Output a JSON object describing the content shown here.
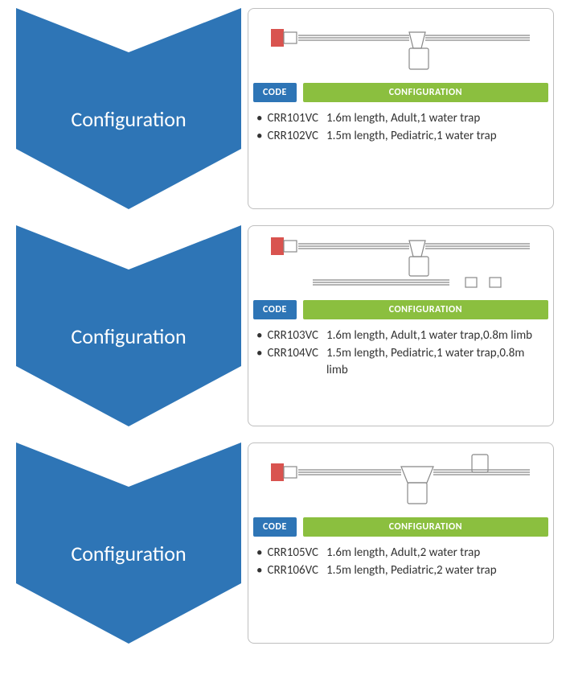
{
  "colors": {
    "chevron_fill": "#2e75b6",
    "code_bg": "#2e75b6",
    "config_bg": "#8bbf3f",
    "card_border": "#bfbfbf",
    "text": "#333333",
    "white": "#ffffff"
  },
  "chevron_label": "Configuration",
  "header": {
    "code": "CODE",
    "config": "CONFIGURATION"
  },
  "sections": [
    {
      "illustration": "circuit-single-trap",
      "items": [
        {
          "code": "CRR101VC",
          "desc": "1.6m length, Adult,1 water trap"
        },
        {
          "code": "CRR102VC",
          "desc": "1.5m length, Pediatric,1 water trap"
        }
      ]
    },
    {
      "illustration": "circuit-single-trap-limb",
      "items": [
        {
          "code": "CRR103VC",
          "desc": "1.6m length, Adult,1 water trap,0.8m limb"
        },
        {
          "code": "CRR104VC",
          "desc": "1.5m length, Pediatric,1 water trap,0.8m limb"
        }
      ]
    },
    {
      "illustration": "circuit-double-trap",
      "items": [
        {
          "code": "CRR105VC",
          "desc": "1.6m length, Adult,2 water trap"
        },
        {
          "code": "CRR106VC",
          "desc": "1.5m length, Pediatric,2 water trap"
        }
      ]
    }
  ]
}
